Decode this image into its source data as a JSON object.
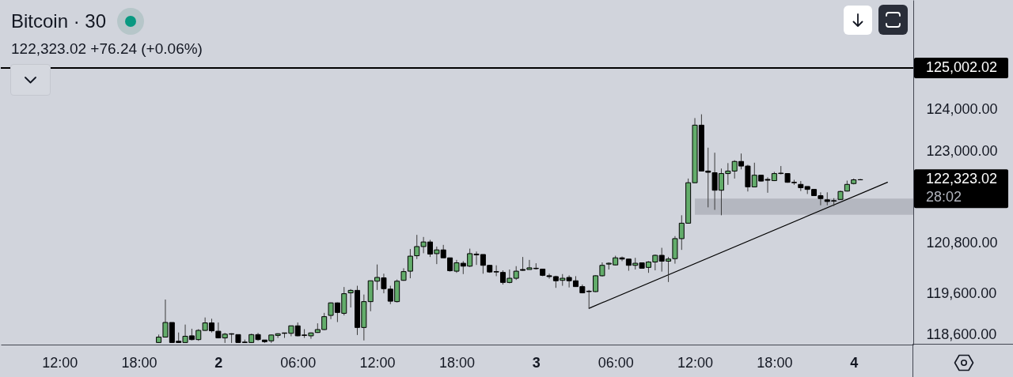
{
  "chart_data": {
    "type": "candlestick",
    "title": "Bitcoin · 30",
    "subtitle": "122,323.02 +76.24 (+0.06%)",
    "x": [
      "--10-01T19:30",
      "--10-01T20:00",
      "--10-01T20:30",
      "--10-01T21:00",
      "--10-01T21:30",
      "--10-01T22:00",
      "--10-01T22:30",
      "--10-01T23:00",
      "--10-01T23:30",
      "--10-02T00:00",
      "--10-02T00:30",
      "--10-02T01:00",
      "--10-02T01:30",
      "--10-02T02:00",
      "--10-02T02:30",
      "--10-02T03:00",
      "--10-02T03:30",
      "--10-02T04:00",
      "--10-02T04:30",
      "--10-02T05:00",
      "--10-02T05:30",
      "--10-02T06:00",
      "--10-02T06:30",
      "--10-02T07:00",
      "--10-02T07:30",
      "--10-02T08:00",
      "--10-02T08:30",
      "--10-02T09:00",
      "--10-02T09:30",
      "--10-02T10:00",
      "--10-02T10:30",
      "--10-02T11:00",
      "--10-02T11:30",
      "--10-02T12:00",
      "--10-02T12:30",
      "--10-02T13:00",
      "--10-02T13:30",
      "--10-02T14:00",
      "--10-02T14:30",
      "--10-02T15:00",
      "--10-02T15:30",
      "--10-02T16:00",
      "--10-02T16:30",
      "--10-02T17:00",
      "--10-02T17:30",
      "--10-02T18:00",
      "--10-02T18:30",
      "--10-02T19:00",
      "--10-02T19:30",
      "--10-02T20:00",
      "--10-02T20:30",
      "--10-02T21:00",
      "--10-02T21:30",
      "--10-02T22:00",
      "--10-02T22:30",
      "--10-02T23:00",
      "--10-02T23:30",
      "--10-03T00:00",
      "--10-03T00:30",
      "--10-03T01:00",
      "--10-03T01:30",
      "--10-03T02:00",
      "--10-03T02:30",
      "--10-03T03:00",
      "--10-03T03:30",
      "--10-03T04:00",
      "--10-03T04:30",
      "--10-03T05:00",
      "--10-03T05:30",
      "--10-03T06:00",
      "--10-03T06:30",
      "--10-03T07:00",
      "--10-03T07:30",
      "--10-03T08:00",
      "--10-03T08:30",
      "--10-03T09:00",
      "--10-03T09:30",
      "--10-03T10:00",
      "--10-03T10:30",
      "--10-03T11:00",
      "--10-03T11:30",
      "--10-03T12:00",
      "--10-03T12:30",
      "--10-03T13:00",
      "--10-03T13:30",
      "--10-03T14:00",
      "--10-03T14:30",
      "--10-03T15:00",
      "--10-03T15:30",
      "--10-03T16:00",
      "--10-03T16:30",
      "--10-03T17:00",
      "--10-03T17:30",
      "--10-03T18:00",
      "--10-03T18:30",
      "--10-03T19:00",
      "--10-03T19:30",
      "--10-03T20:00",
      "--10-03T20:30",
      "--10-03T21:00",
      "--10-03T21:30",
      "--10-03T22:00",
      "--10-03T22:30",
      "--10-03T23:00",
      "--10-03T23:30",
      "--10-04T00:00",
      "--10-04T00:30"
    ],
    "ohlc": [
      [
        118420,
        118610,
        118410,
        118550
      ],
      [
        118550,
        119450,
        118540,
        118900
      ],
      [
        118900,
        118900,
        118410,
        118420
      ],
      [
        118450,
        118660,
        118410,
        118420
      ],
      [
        118420,
        118850,
        118410,
        118570
      ],
      [
        118580,
        118750,
        118470,
        118490
      ],
      [
        118490,
        118740,
        118460,
        118710
      ],
      [
        118710,
        119020,
        118700,
        118890
      ],
      [
        118890,
        118990,
        118660,
        118700
      ],
      [
        118690,
        118900,
        118520,
        118530
      ],
      [
        118530,
        118650,
        118410,
        118620
      ],
      [
        118630,
        118640,
        118410,
        118620
      ],
      [
        118610,
        118610,
        118410,
        118420
      ],
      [
        118430,
        118490,
        118410,
        118420
      ],
      [
        118420,
        118630,
        118410,
        118610
      ],
      [
        118610,
        118650,
        118460,
        118490
      ],
      [
        118480,
        118480,
        118410,
        118440
      ],
      [
        118460,
        118610,
        118410,
        118600
      ],
      [
        118590,
        118640,
        118530,
        118630
      ],
      [
        118650,
        118650,
        118530,
        118640
      ],
      [
        118640,
        118820,
        118570,
        118820
      ],
      [
        118820,
        118900,
        118570,
        118580
      ],
      [
        118600,
        118740,
        118530,
        118590
      ],
      [
        118580,
        118660,
        118510,
        118650
      ],
      [
        118660,
        118880,
        118650,
        118730
      ],
      [
        118730,
        119130,
        118720,
        119040
      ],
      [
        119070,
        119380,
        118980,
        119370
      ],
      [
        119370,
        119380,
        118910,
        119140
      ],
      [
        119120,
        119750,
        119070,
        119590
      ],
      [
        119610,
        119700,
        119260,
        119670
      ],
      [
        119670,
        119780,
        118600,
        118780
      ],
      [
        118780,
        119570,
        118470,
        119400
      ],
      [
        119400,
        119900,
        119170,
        119900
      ],
      [
        119890,
        120290,
        119680,
        119980
      ],
      [
        119970,
        120070,
        119600,
        119710
      ],
      [
        119700,
        119780,
        119340,
        119410
      ],
      [
        119400,
        119930,
        119380,
        119890
      ],
      [
        119910,
        120200,
        119900,
        120120
      ],
      [
        120130,
        120660,
        119960,
        120490
      ],
      [
        120500,
        121000,
        120420,
        120720
      ],
      [
        120720,
        120950,
        120560,
        120830
      ],
      [
        120830,
        120880,
        120470,
        120540
      ],
      [
        120550,
        120720,
        120300,
        120640
      ],
      [
        120640,
        120760,
        120450,
        120450
      ],
      [
        120450,
        120450,
        120120,
        120140
      ],
      [
        120130,
        120400,
        120090,
        120330
      ],
      [
        120320,
        120370,
        120060,
        120250
      ],
      [
        120250,
        120670,
        120230,
        120550
      ],
      [
        120540,
        120600,
        120280,
        120520
      ],
      [
        120530,
        120530,
        120070,
        120270
      ],
      [
        120270,
        120280,
        120090,
        120110
      ],
      [
        120120,
        120270,
        120010,
        120110
      ],
      [
        120100,
        120150,
        119810,
        119860
      ],
      [
        119860,
        120170,
        119840,
        119960
      ],
      [
        119960,
        120250,
        119920,
        120130
      ],
      [
        120170,
        120470,
        120140,
        120150
      ],
      [
        120170,
        120400,
        120170,
        120210
      ],
      [
        120200,
        120320,
        120170,
        120190
      ],
      [
        120180,
        120180,
        120010,
        120030
      ],
      [
        120020,
        120070,
        119950,
        120000
      ],
      [
        120000,
        120020,
        119730,
        119900
      ],
      [
        119910,
        120060,
        119780,
        119960
      ],
      [
        119980,
        120030,
        119740,
        119900
      ],
      [
        119900,
        120010,
        119760,
        119760
      ],
      [
        119760,
        119810,
        119600,
        119610
      ],
      [
        119650,
        119680,
        119240,
        119640
      ],
      [
        119640,
        120030,
        119630,
        120020
      ],
      [
        120020,
        120340,
        120000,
        120270
      ],
      [
        120300,
        120340,
        120170,
        120320
      ],
      [
        120280,
        120500,
        120270,
        120450
      ],
      [
        120450,
        120480,
        120370,
        120420
      ],
      [
        120420,
        120420,
        120140,
        120270
      ],
      [
        120270,
        120450,
        120170,
        120320
      ],
      [
        120330,
        120340,
        120200,
        120200
      ],
      [
        120220,
        120370,
        120090,
        120350
      ],
      [
        120350,
        120530,
        120150,
        120510
      ],
      [
        120510,
        120690,
        120120,
        120370
      ],
      [
        120370,
        120470,
        119870,
        120420
      ],
      [
        120430,
        120970,
        120310,
        120910
      ],
      [
        120910,
        121470,
        120640,
        121280
      ],
      [
        121280,
        122350,
        121270,
        122250
      ],
      [
        122250,
        123800,
        122240,
        123630
      ],
      [
        123630,
        123890,
        122520,
        122530
      ],
      [
        122530,
        123090,
        121660,
        122500
      ],
      [
        122490,
        122970,
        121600,
        122070
      ],
      [
        122070,
        122590,
        121470,
        122470
      ],
      [
        122470,
        122720,
        122200,
        122530
      ],
      [
        122530,
        122790,
        122350,
        122760
      ],
      [
        122760,
        122950,
        122570,
        122650
      ],
      [
        122650,
        122680,
        122040,
        122150
      ],
      [
        122150,
        122730,
        122140,
        122430
      ],
      [
        122430,
        122430,
        122280,
        122290
      ],
      [
        122330,
        122380,
        122010,
        122310
      ],
      [
        122300,
        122510,
        122290,
        122470
      ],
      [
        122480,
        122650,
        122450,
        122470
      ],
      [
        122470,
        122480,
        122250,
        122260
      ],
      [
        122260,
        122320,
        122200,
        122250
      ],
      [
        122210,
        122290,
        122050,
        122130
      ],
      [
        122160,
        122160,
        121980,
        122090
      ],
      [
        122090,
        122090,
        121940,
        121940
      ],
      [
        121940,
        122020,
        121710,
        121870
      ],
      [
        121840,
        122020,
        121710,
        121800
      ],
      [
        121820,
        121880,
        121690,
        121810
      ],
      [
        121850,
        122060,
        121840,
        122040
      ],
      [
        122050,
        122300,
        122040,
        122210
      ],
      [
        122230,
        122350,
        122210,
        122320
      ],
      [
        122320,
        122340,
        122310,
        122323.02
      ]
    ],
    "colors": [
      "#63ad6b",
      "#63ad6b",
      "#000000",
      "#000000",
      "#63ad6b",
      "#000000",
      "#63ad6b",
      "#63ad6b",
      "#000000",
      "#000000",
      "#63ad6b",
      "#000000",
      "#000000",
      "#000000",
      "#63ad6b",
      "#000000",
      "#000000",
      "#63ad6b",
      "#63ad6b",
      "#000000",
      "#63ad6b",
      "#000000",
      "#000000",
      "#63ad6b",
      "#63ad6b",
      "#63ad6b",
      "#63ad6b",
      "#000000",
      "#63ad6b",
      "#63ad6b",
      "#000000",
      "#63ad6b",
      "#63ad6b",
      "#63ad6b",
      "#000000",
      "#000000",
      "#63ad6b",
      "#63ad6b",
      "#63ad6b",
      "#63ad6b",
      "#63ad6b",
      "#000000",
      "#63ad6b",
      "#000000",
      "#000000",
      "#63ad6b",
      "#000000",
      "#63ad6b",
      "#000000",
      "#000000",
      "#000000",
      "#000000",
      "#000000",
      "#63ad6b",
      "#63ad6b",
      "#000000",
      "#63ad6b",
      "#000000",
      "#000000",
      "#000000",
      "#000000",
      "#63ad6b",
      "#000000",
      "#000000",
      "#000000",
      "#000000",
      "#63ad6b",
      "#63ad6b",
      "#63ad6b",
      "#63ad6b",
      "#000000",
      "#000000",
      "#63ad6b",
      "#000000",
      "#63ad6b",
      "#63ad6b",
      "#000000",
      "#63ad6b",
      "#63ad6b",
      "#63ad6b",
      "#63ad6b",
      "#63ad6b",
      "#000000",
      "#000000",
      "#000000",
      "#63ad6b",
      "#63ad6b",
      "#63ad6b",
      "#000000",
      "#000000",
      "#63ad6b",
      "#000000",
      "#000000",
      "#63ad6b",
      "#000000",
      "#000000",
      "#000000",
      "#000000",
      "#000000",
      "#000000",
      "#000000",
      "#000000",
      "#000000",
      "#63ad6b",
      "#63ad6b",
      "#63ad6b",
      "#63ad6b"
    ],
    "series": [
      {
        "type": "line",
        "color": "#b4b7c0",
        "x": [
          "--10-03T12:00",
          "--10-04T04:30"
        ],
        "values": [
          null,
          null
        ],
        "lower": [
          121480,
          121480
        ],
        "upper": [
          121870,
          121870
        ]
      },
      {
        "type": "line",
        "color": "#000000",
        "x": [
          "--10-03T04:00",
          "--10-04T02:33"
        ],
        "values": [
          119240,
          122260
        ]
      }
    ],
    "xlim": [
      "--10-01T07:34",
      "--10-04T04:30"
    ],
    "xticks": [
      {
        "value": "--10-01T12:00",
        "label": "12:00"
      },
      {
        "value": "--10-01T18:00",
        "label": "18:00"
      },
      {
        "value": "--10-02",
        "label": "2"
      },
      {
        "value": "--10-02T06:00",
        "label": "06:00"
      },
      {
        "value": "--10-02T12:00",
        "label": "12:00"
      },
      {
        "value": "--10-02T18:00",
        "label": "18:00"
      },
      {
        "value": "--10-03",
        "label": "3"
      },
      {
        "value": "--10-03T06:00",
        "label": "06:00"
      },
      {
        "value": "--10-03T12:00",
        "label": "12:00"
      },
      {
        "value": "--10-03T18:00",
        "label": "18:00"
      },
      {
        "value": "--10-04",
        "label": "4"
      }
    ],
    "ylim": [
      118370,
      126630
    ],
    "yticks": [
      {
        "value": 124000,
        "label": "124,000.00"
      },
      {
        "value": 123000,
        "label": "123,000.00"
      },
      {
        "value": 120800,
        "label": "120,800.00"
      },
      {
        "value": 119600,
        "label": "119,600.00"
      },
      {
        "value": 118600,
        "label": "118,600.00"
      }
    ],
    "ref_lines": [
      {
        "axis": "y",
        "value": 125002.02,
        "label": "125,002.02",
        "color": "#000000"
      }
    ],
    "annotations": [
      "122,323.02",
      "28:02"
    ]
  }
}
